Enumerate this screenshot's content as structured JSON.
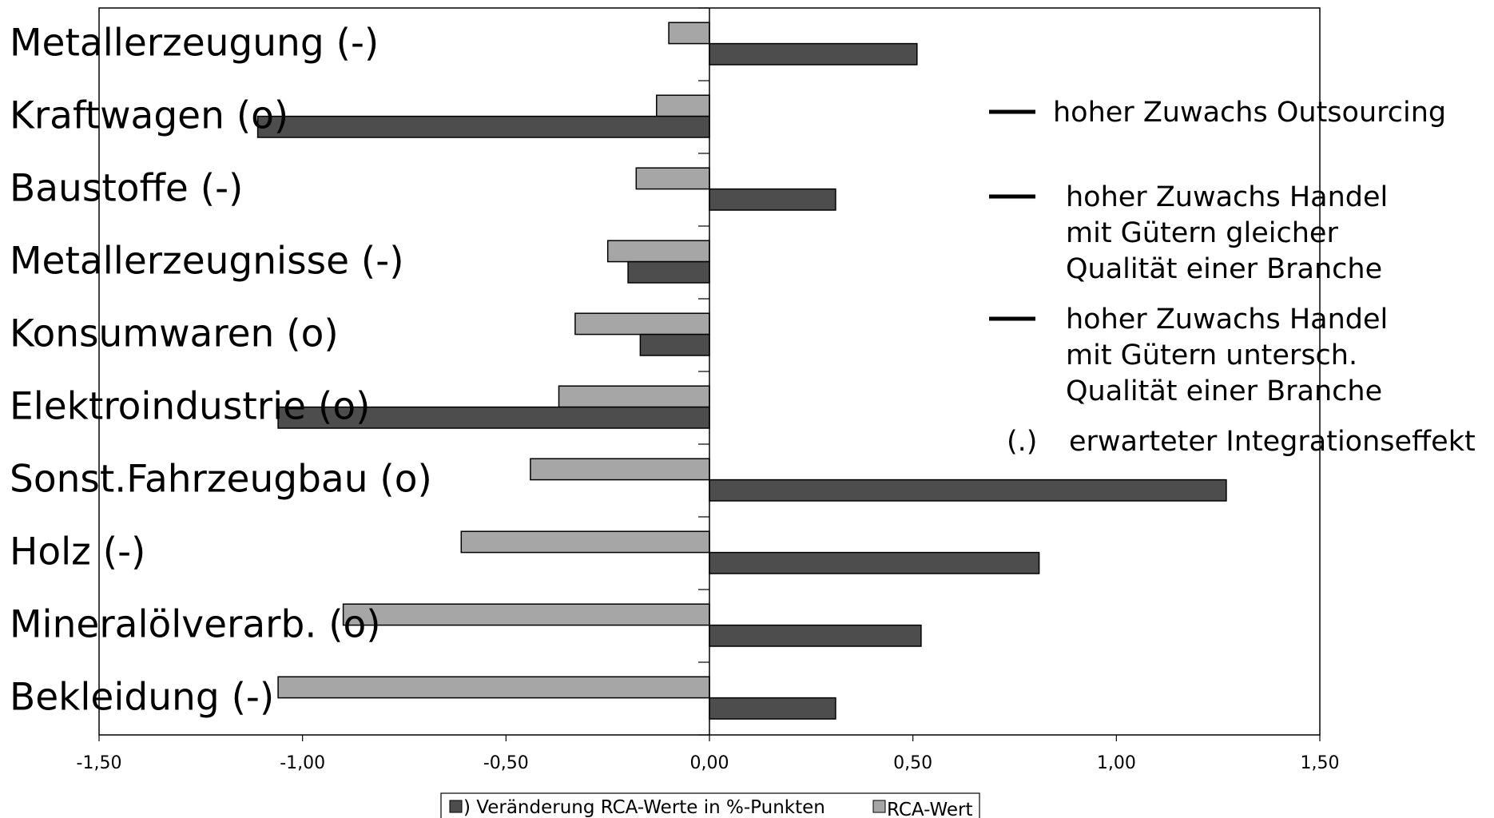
{
  "chart_data": {
    "type": "bar",
    "orientation": "horizontal",
    "categories": [
      "Metallerzeugung (-)",
      "Kraftwagen (o)",
      "Baustoffe (-)",
      "Metallerzeugnisse (-)",
      "Konsumwaren (o)",
      "Elektroindustrie (o)",
      "Sonst.Fahrzeugbau (o)",
      "Holz (-)",
      "Mineralölverarb. (o)",
      "Bekleidung (-)"
    ],
    "series": [
      {
        "name": "RCA-Wert",
        "color": "#a6a6a6",
        "values": [
          -0.1,
          -0.13,
          -0.18,
          -0.25,
          -0.33,
          -0.37,
          -0.44,
          -0.61,
          -0.9,
          -1.06
        ]
      },
      {
        "name": "Veränderung RCA-Werte in %-Punkten",
        "color": "#4d4d4d",
        "values": [
          0.51,
          -1.11,
          0.31,
          -0.2,
          -0.17,
          -1.06,
          1.27,
          0.81,
          0.52,
          0.31
        ]
      }
    ],
    "xlim": [
      -1.5,
      1.5
    ],
    "xticks": [
      "-1,50",
      "-1,00",
      "-0,50",
      "0,00",
      "0,50",
      "1,00",
      "1,50"
    ],
    "xtick_values": [
      -1.5,
      -1.0,
      -0.5,
      0.0,
      0.5,
      1.0,
      1.5
    ],
    "legend": {
      "placement": "bottom",
      "entries": [
        {
          "marker_color": "#4d4d4d",
          "label": ")   Veränderung RCA-Werte in %-Punkten"
        },
        {
          "marker_color": "#a6a6a6",
          "label": "RCA-Wert"
        }
      ]
    },
    "annotations": [
      {
        "marker": "line",
        "lines": [
          "hoher Zuwachs Outsourcing"
        ]
      },
      {
        "marker": "line",
        "lines": [
          "hoher Zuwachs Handel",
          "mit Gütern gleicher",
          "Qualität einer Branche"
        ]
      },
      {
        "marker": "line",
        "lines": [
          "hoher Zuwachs Handel",
          "mit Gütern untersch.",
          "Qualität einer Branche"
        ]
      },
      {
        "marker": "text",
        "symbol": "(.)",
        "lines": [
          "erwarteter Integrationseffekt"
        ]
      }
    ],
    "grid": false
  }
}
